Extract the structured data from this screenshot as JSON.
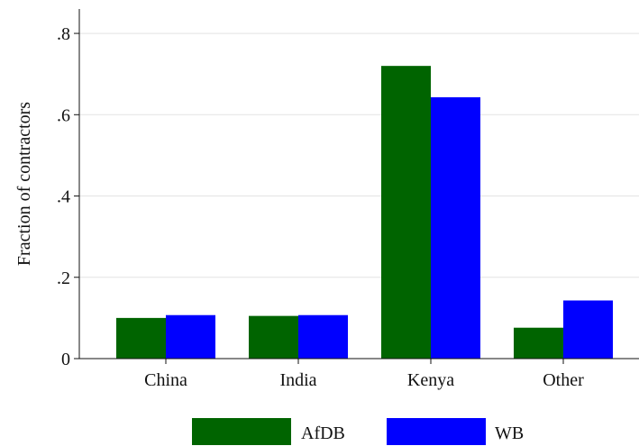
{
  "chart_data": {
    "type": "bar",
    "categories": [
      "China",
      "India",
      "Kenya",
      "Other"
    ],
    "series": [
      {
        "name": "AfDB",
        "color": "#006400",
        "values": [
          0.1,
          0.105,
          0.72,
          0.076
        ]
      },
      {
        "name": "WB",
        "color": "#0000ff",
        "values": [
          0.107,
          0.107,
          0.643,
          0.143
        ]
      }
    ],
    "ylabel": "Fraction of contractors",
    "xlabel": "",
    "ylim": [
      0,
      0.86
    ],
    "yticks": [
      0,
      0.2,
      0.4,
      0.6,
      0.8
    ],
    "ytick_labels": [
      "0",
      ".2",
      ".4",
      ".6",
      ".8"
    ],
    "grid": true,
    "legend_position": "bottom"
  }
}
